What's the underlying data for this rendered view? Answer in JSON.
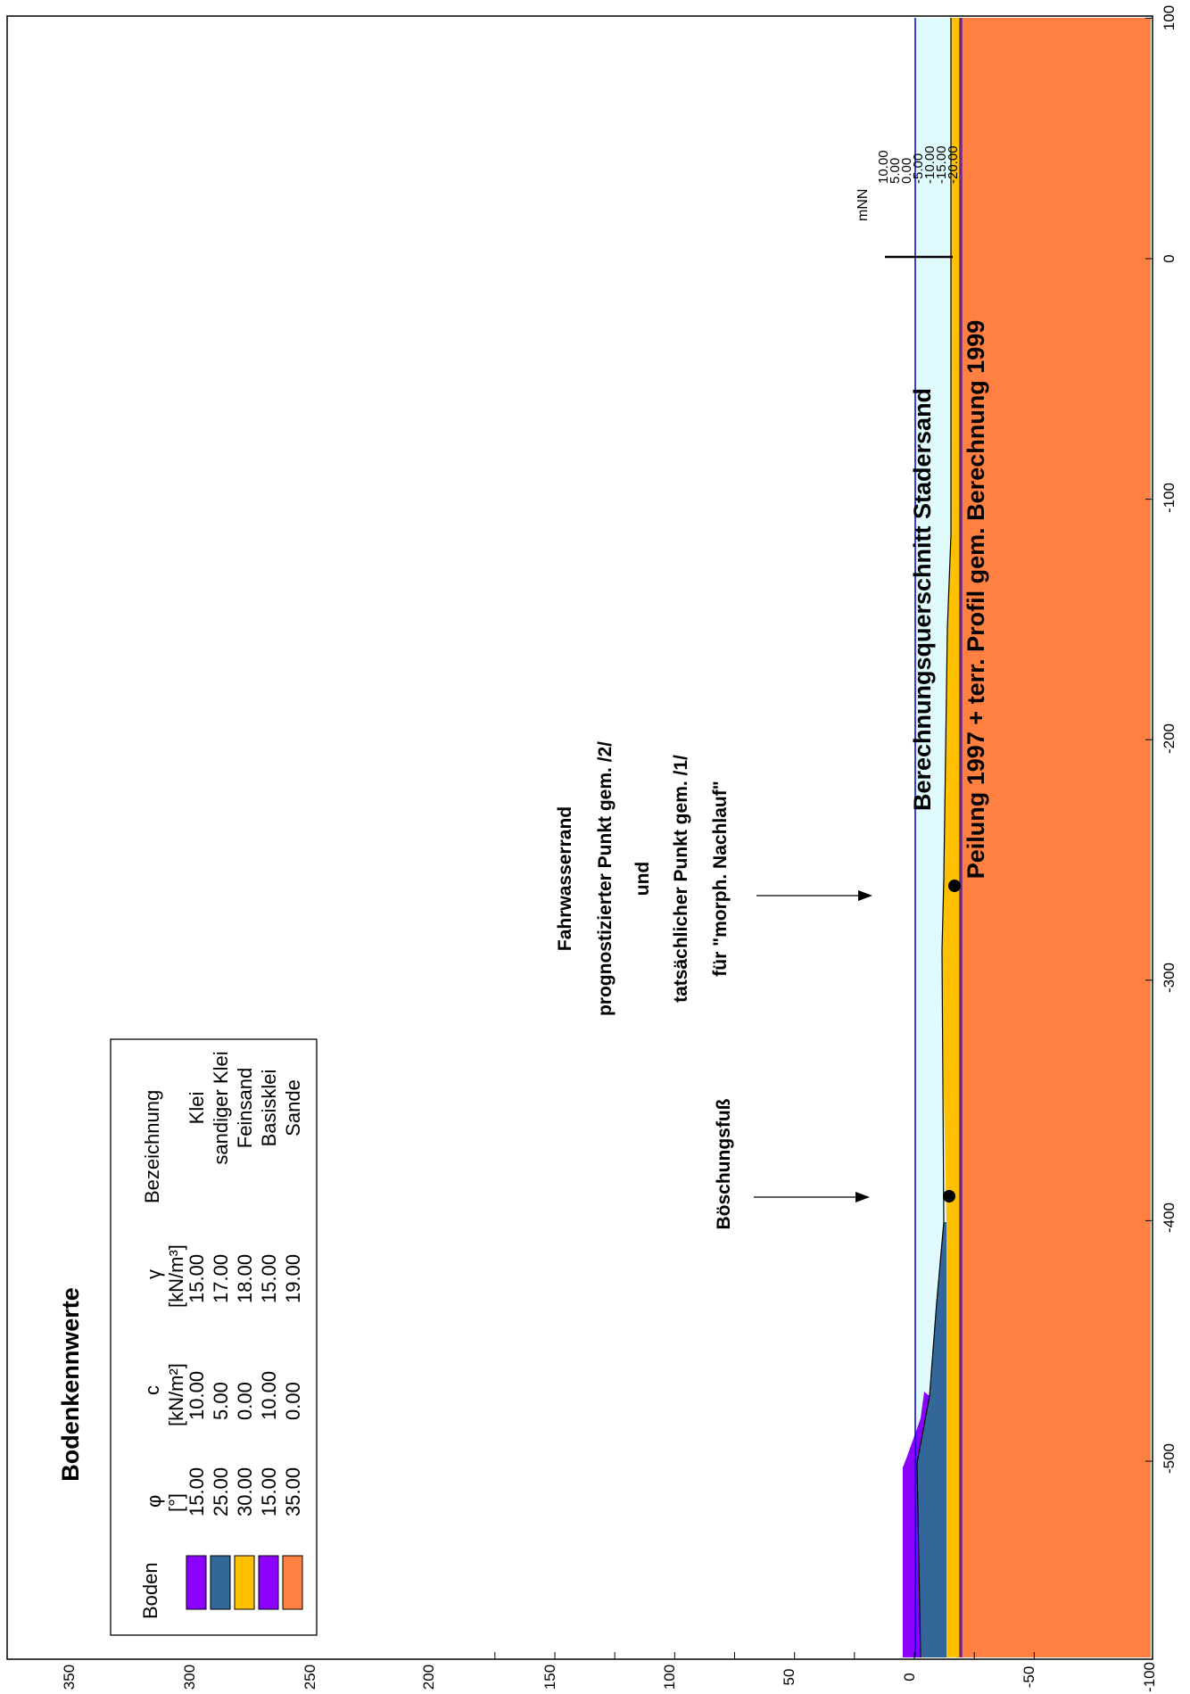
{
  "title": {
    "line1": "Berechnungsquerschnitt Stadersand",
    "line2": "Peilung 1997 + terr. Profil gem. Berechnung 1999"
  },
  "legend": {
    "title": "Bodenkennwerte",
    "col_boden": "Boden",
    "col_phi": "φ",
    "col_phi_unit": "[°]",
    "col_c": "c",
    "col_c_unit": "[kN/m²]",
    "col_gamma": "γ",
    "col_gamma_unit": "[kN/m³]",
    "col_bez": "Bezeichnung",
    "rows": [
      {
        "color": "#8b00ff",
        "phi": "15.00",
        "c": "10.00",
        "gamma": "15.00",
        "name": "Klei"
      },
      {
        "color": "#336699",
        "phi": "25.00",
        "c": "5.00",
        "gamma": "17.00",
        "name": "sandiger Klei"
      },
      {
        "color": "#ffc000",
        "phi": "30.00",
        "c": "0.00",
        "gamma": "18.00",
        "name": "Feinsand"
      },
      {
        "color": "#8b00ff",
        "phi": "15.00",
        "c": "10.00",
        "gamma": "15.00",
        "name": "Basisklei"
      },
      {
        "color": "#ff8040",
        "phi": "35.00",
        "c": "0.00",
        "gamma": "19.00",
        "name": "Sande"
      }
    ]
  },
  "annotations": {
    "boeschungsfuss": "Böschungsfuß",
    "fahrwasser": [
      "Fahrwasserrand",
      "prognostizierter Punkt gem. /2/",
      "und",
      "tatsächlicher Punkt gem. /1/",
      "für \"morph. Nachlauf\""
    ]
  },
  "gauge": {
    "unit": "mNN",
    "labels": [
      "10.00",
      "5.00",
      "0.00",
      "-5.00",
      "-10.00",
      "-15.00",
      "-20.00"
    ]
  },
  "chart_data": {
    "type": "cross-section",
    "x_axis": {
      "ticks": [
        "-500",
        "-400",
        "-300",
        "-200",
        "-100",
        "0",
        "100"
      ],
      "range": [
        -578,
        100
      ]
    },
    "y_axis": {
      "ticks": [
        "350",
        "300",
        "250",
        "200",
        "150",
        "100",
        "50",
        "0",
        "-50",
        "-100"
      ],
      "range": [
        -100,
        370
      ]
    },
    "water_level": 0,
    "points": [
      {
        "label": "Böschungsfuß",
        "x": -388,
        "y": -14
      },
      {
        "label": "Fahrwasserrand",
        "x": -260,
        "y": -14
      }
    ],
    "colors": {
      "water": "#dffbfd",
      "water_line": "#0000cc",
      "klei": "#8b00ff",
      "sandiger_klei": "#336699",
      "feinsand": "#ffc000",
      "sande": "#ff8040"
    }
  }
}
